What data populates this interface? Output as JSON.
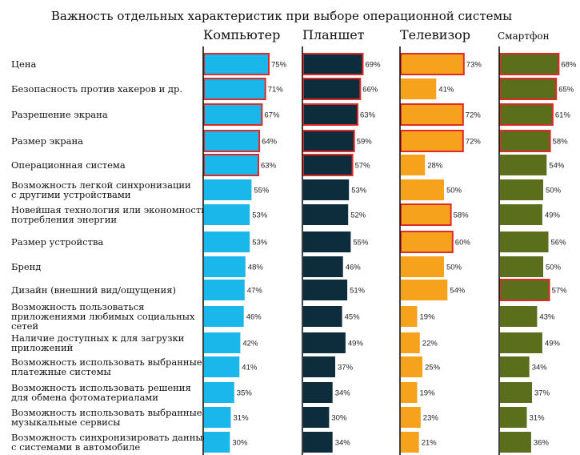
{
  "chart_data": {
    "type": "bar",
    "orientation": "horizontal",
    "title": "Важность отдельных характеристик при выборе операционной системы",
    "categories": [
      [
        "Цена"
      ],
      [
        "Безопасность против хакеров и др."
      ],
      [
        "Разрешение экрана"
      ],
      [
        "Размер экрана"
      ],
      [
        "Операционная система"
      ],
      [
        "Возможность легкой синхронизации",
        "с другими устройствами"
      ],
      [
        "Новейшая технология или экономность",
        "потребления энергии"
      ],
      [
        "Размер устройства"
      ],
      [
        "Бренд"
      ],
      [
        "Дизайн (внешний вид/ощущения)"
      ],
      [
        "Возможность пользоваться",
        "приложениями любимых социальных",
        "сетей"
      ],
      [
        "Наличие доступных к для загрузки",
        "приложений"
      ],
      [
        "Возможность использовать выбранные",
        "платежные системы"
      ],
      [
        "Возможность использовать решения",
        "для обмена фотоматериалами"
      ],
      [
        "Возможность использовать выбранные",
        "музыкальные сервисы"
      ],
      [
        "Возможность синхронизировать данные",
        "с системами в автомобиле"
      ]
    ],
    "series": [
      {
        "name": "Компьютер",
        "color": "#1ab8ea",
        "values": [
          75,
          71,
          67,
          64,
          63,
          55,
          53,
          53,
          48,
          47,
          46,
          42,
          41,
          35,
          31,
          30
        ],
        "labels": [
          "75%",
          "71%",
          "67%",
          "64%",
          "63%",
          "55%",
          "53%",
          "53%",
          "48%",
          "47%",
          "46%",
          "42%",
          "41%",
          "35%",
          "31%",
          "30%"
        ],
        "highlighted": [
          true,
          true,
          true,
          true,
          true,
          false,
          false,
          false,
          false,
          false,
          false,
          false,
          false,
          false,
          false,
          false
        ]
      },
      {
        "name": "Планшет",
        "color": "#0d2c3c",
        "values": [
          69,
          66,
          63,
          59,
          57,
          53,
          52,
          55,
          46,
          51,
          45,
          49,
          37,
          34,
          30,
          34
        ],
        "labels": [
          "69%",
          "66%",
          "63%",
          "59%",
          "57%",
          "53%",
          "52%",
          "55%",
          "46%",
          "51%",
          "45%",
          "49%",
          "37%",
          "34%",
          "30%",
          "34%"
        ],
        "highlighted": [
          true,
          true,
          true,
          true,
          true,
          false,
          false,
          false,
          false,
          false,
          false,
          false,
          false,
          false,
          false,
          false
        ]
      },
      {
        "name": "Телевизор",
        "color": "#f7a21d",
        "values": [
          73,
          41,
          72,
          72,
          28,
          50,
          58,
          60,
          50,
          54,
          19,
          22,
          25,
          19,
          23,
          21
        ],
        "labels": [
          "73%",
          "41%",
          "72%",
          "72%",
          "28%",
          "50%",
          "58%",
          "60%",
          "50%",
          "54%",
          "19%",
          "22%",
          "25%",
          "19%",
          "23%",
          "21%"
        ],
        "highlighted": [
          true,
          false,
          true,
          true,
          false,
          false,
          true,
          true,
          false,
          false,
          false,
          false,
          false,
          false,
          false,
          false
        ]
      },
      {
        "name": "Смартфон",
        "color": "#5a6e1c",
        "values": [
          68,
          65,
          61,
          58,
          54,
          50,
          49,
          56,
          50,
          57,
          43,
          49,
          34,
          37,
          31,
          36
        ],
        "labels": [
          "68%",
          "65%",
          "61%",
          "58%",
          "54%",
          "50%",
          "49%",
          "56%",
          "50%",
          "57%",
          "43%",
          "49%",
          "34%",
          "37%",
          "31%",
          "36%"
        ],
        "highlighted": [
          true,
          true,
          true,
          true,
          false,
          false,
          false,
          false,
          false,
          true,
          false,
          false,
          false,
          false,
          false,
          false
        ]
      }
    ],
    "highlight_color": "#e02a2a",
    "value_unit": "%",
    "xlim": [
      0,
      100
    ],
    "grid": false,
    "legend": "none"
  }
}
